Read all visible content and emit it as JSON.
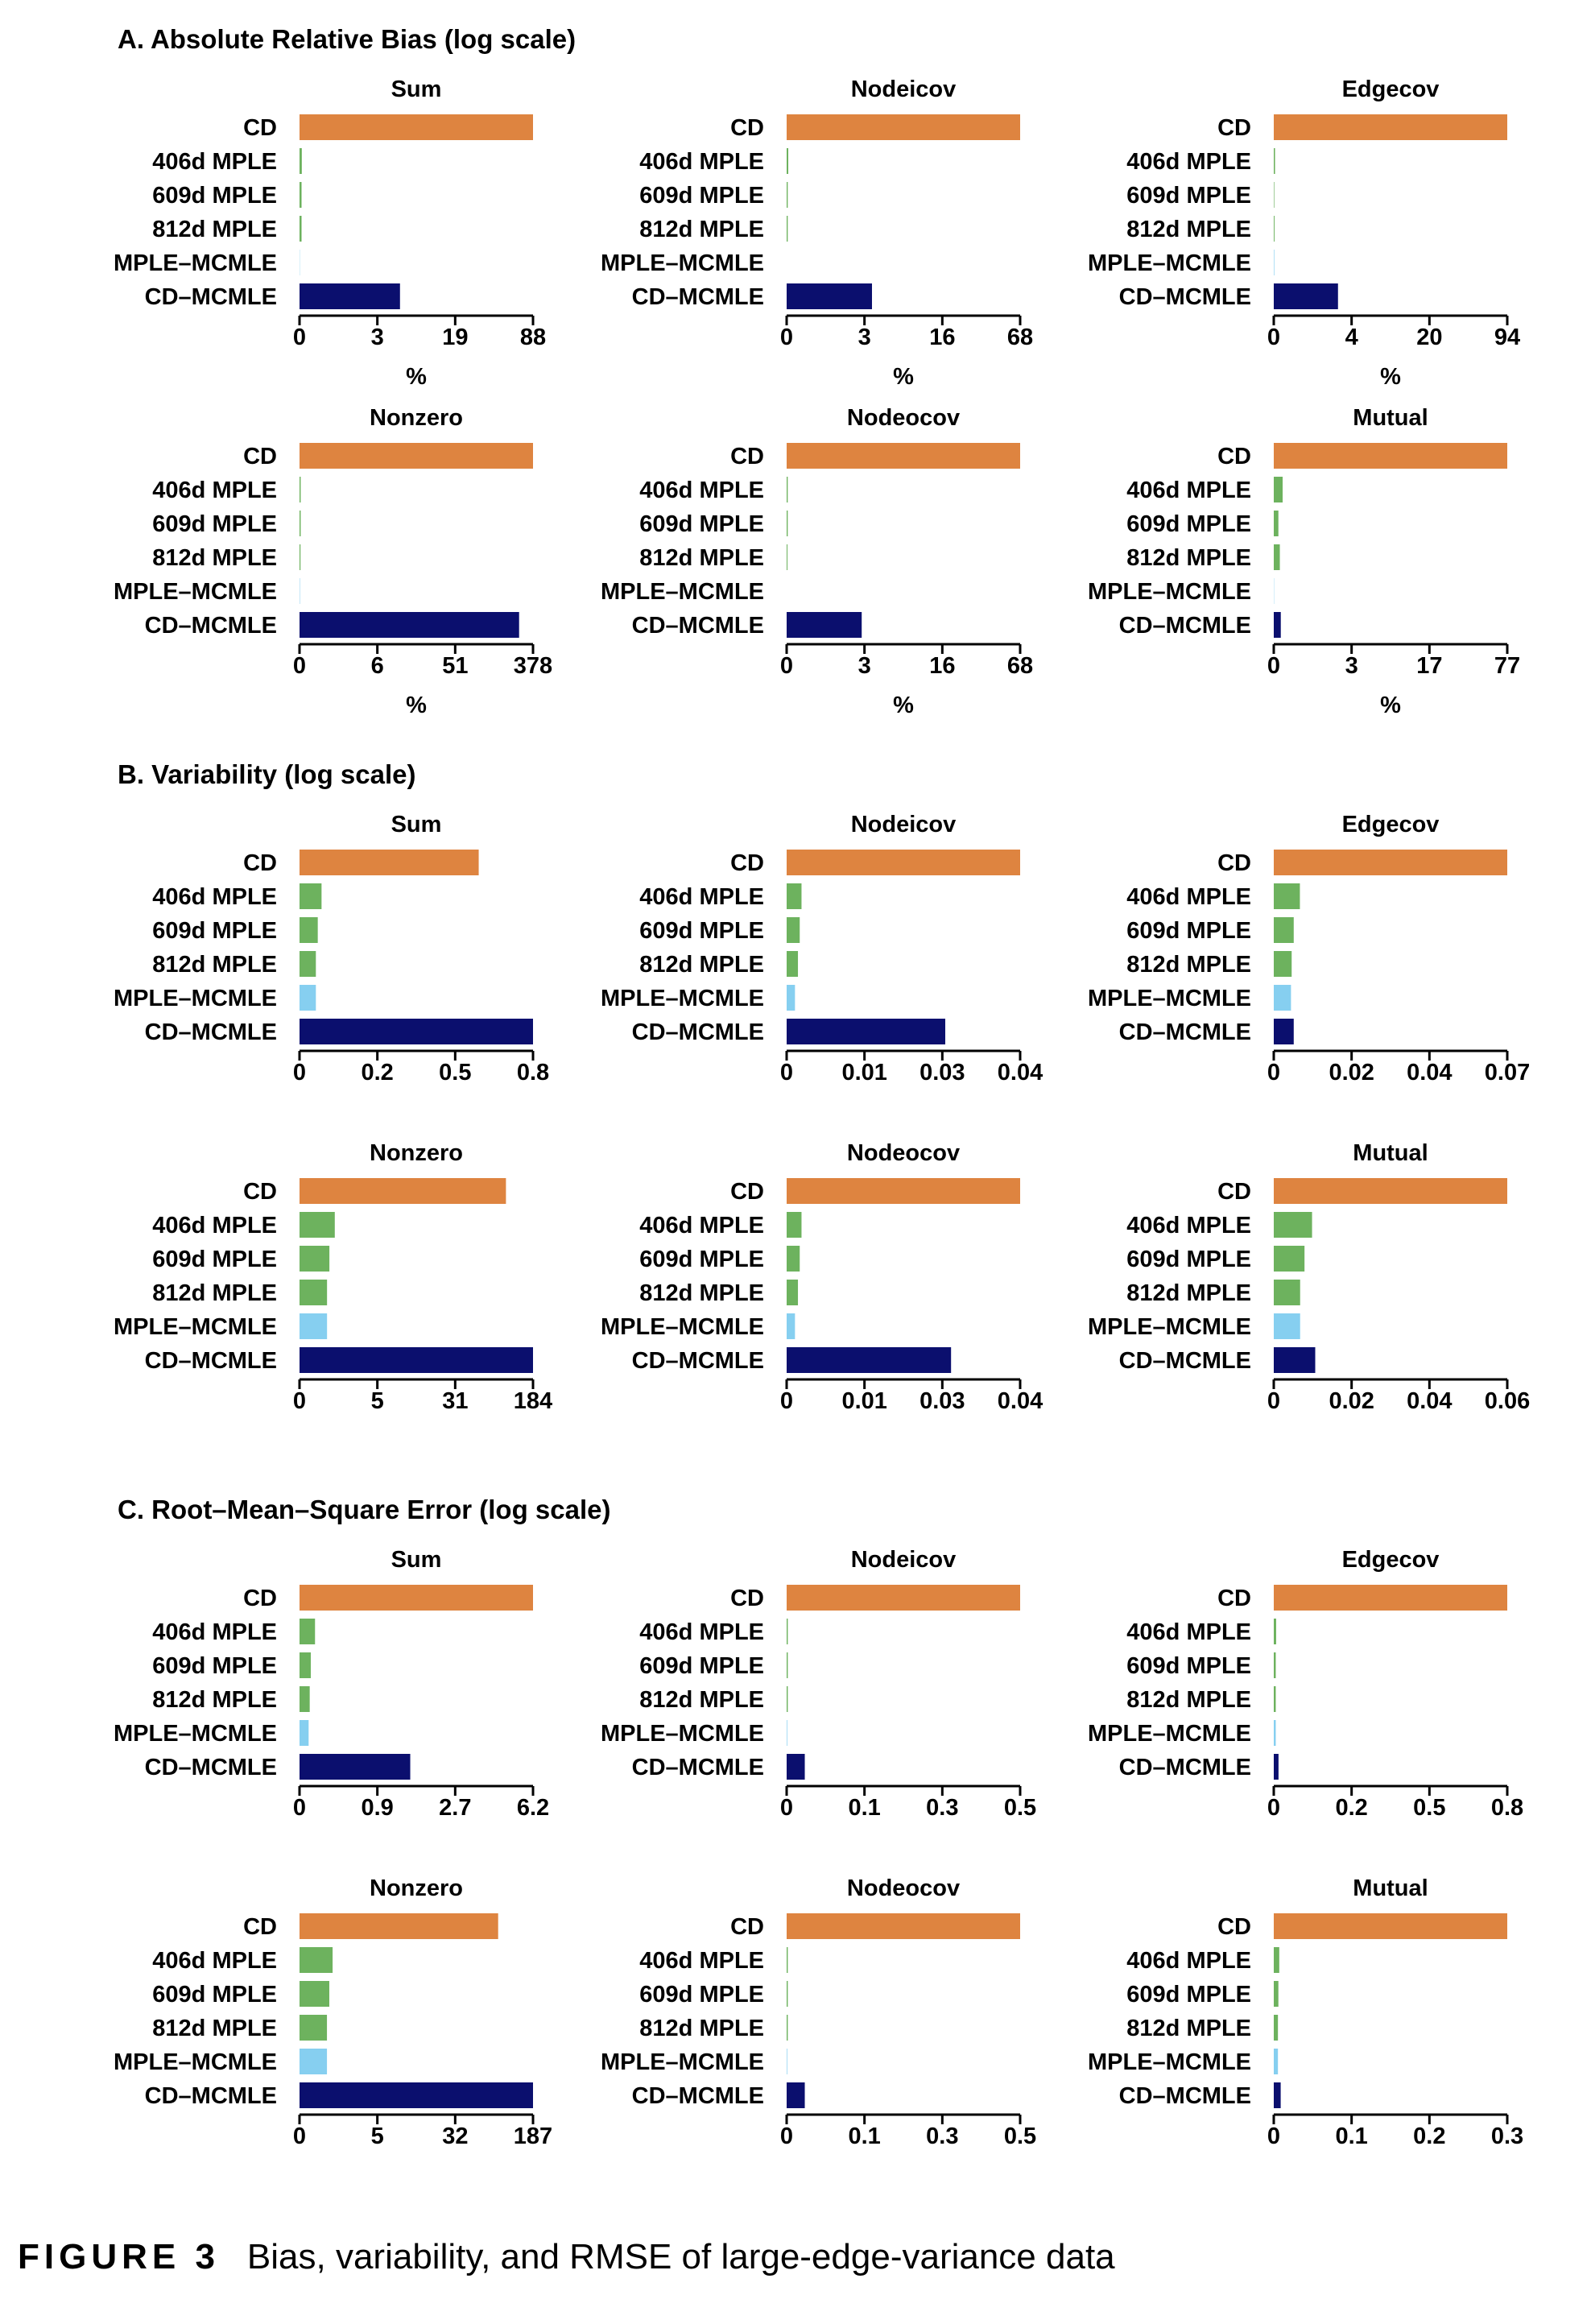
{
  "figure": {
    "label": "FIGURE 3",
    "caption": "Bias, variability, and RMSE of large-edge-variance data"
  },
  "colors": {
    "CD": "#DE8440",
    "406d MPLE": "#6DB25E",
    "609d MPLE": "#6DB25E",
    "812d MPLE": "#6DB25E",
    "MPLE–MCMLE": "#86CFF0",
    "CD–MCMLE": "#0B0F6E"
  },
  "categories": [
    "CD",
    "406d MPLE",
    "609d MPLE",
    "812d MPLE",
    "MPLE–MCMLE",
    "CD–MCMLE"
  ],
  "chart_data": [
    {
      "section": "A. Absolute Relative Bias (log scale)",
      "scale": "log",
      "xlabel": "%",
      "panels": [
        {
          "type": "bar",
          "orientation": "horizontal",
          "title": "Sum",
          "ticks": [
            "0",
            "3",
            "19",
            "88"
          ],
          "xlim": [
            0,
            88
          ],
          "values": [
            88,
            0.045,
            0.04,
            0.04,
            0.005,
            5.9
          ]
        },
        {
          "type": "bar",
          "orientation": "horizontal",
          "title": "Nodeicov",
          "ticks": [
            "0",
            "3",
            "16",
            "68"
          ],
          "xlim": [
            0,
            68
          ],
          "values": [
            68,
            0.03,
            0.02,
            0.02,
            0.0,
            3.7
          ]
        },
        {
          "type": "bar",
          "orientation": "horizontal",
          "title": "Edgecov",
          "ticks": [
            "0",
            "4",
            "20",
            "94"
          ],
          "xlim": [
            0,
            94
          ],
          "values": [
            94,
            0.025,
            0.01,
            0.015,
            0.01,
            2.5
          ]
        },
        {
          "type": "bar",
          "orientation": "horizontal",
          "title": "Nonzero",
          "ticks": [
            "0",
            "6",
            "51",
            "378"
          ],
          "xlim": [
            0,
            378
          ],
          "values": [
            378,
            0.03,
            0.03,
            0.025,
            0.01,
            265
          ]
        },
        {
          "type": "bar",
          "orientation": "horizontal",
          "title": "Nodeocov",
          "ticks": [
            "0",
            "3",
            "16",
            "68"
          ],
          "xlim": [
            0,
            68
          ],
          "values": [
            68,
            0.02,
            0.02,
            0.015,
            0.0,
            2.9
          ]
        },
        {
          "type": "bar",
          "orientation": "horizontal",
          "title": "Mutual",
          "ticks": [
            "0",
            "3",
            "17",
            "77"
          ],
          "xlim": [
            0,
            77
          ],
          "values": [
            77,
            0.18,
            0.09,
            0.12,
            0.005,
            0.14
          ]
        }
      ]
    },
    {
      "section": "B. Variability (log scale)",
      "scale": "log",
      "xlabel": "",
      "panels": [
        {
          "type": "bar",
          "orientation": "horizontal",
          "title": "Sum",
          "ticks": [
            "0",
            "0.2",
            "0.5",
            "0.8"
          ],
          "xlim": [
            0,
            0.8
          ],
          "values": [
            0.57,
            0.057,
            0.047,
            0.042,
            0.042,
            0.8
          ]
        },
        {
          "type": "bar",
          "orientation": "horizontal",
          "title": "Nodeicov",
          "ticks": [
            "0",
            "0.01",
            "0.03",
            "0.04"
          ],
          "xlim": [
            0,
            0.04
          ],
          "values": [
            0.04,
            0.0025,
            0.0022,
            0.0019,
            0.0014,
            0.027
          ]
        },
        {
          "type": "bar",
          "orientation": "horizontal",
          "title": "Edgecov",
          "ticks": [
            "0",
            "0.02",
            "0.04",
            "0.07"
          ],
          "xlim": [
            0,
            0.07
          ],
          "values": [
            0.07,
            0.0076,
            0.0058,
            0.0052,
            0.005,
            0.0058
          ]
        },
        {
          "type": "bar",
          "orientation": "horizontal",
          "title": "Nonzero",
          "ticks": [
            "0",
            "5",
            "31",
            "184"
          ],
          "xlim": [
            0,
            184
          ],
          "values": [
            100,
            1.2,
            0.95,
            0.85,
            0.85,
            184
          ]
        },
        {
          "type": "bar",
          "orientation": "horizontal",
          "title": "Nodeocov",
          "ticks": [
            "0",
            "0.01",
            "0.03",
            "0.04"
          ],
          "xlim": [
            0,
            0.04
          ],
          "values": [
            0.04,
            0.0025,
            0.0022,
            0.0019,
            0.0014,
            0.028
          ]
        },
        {
          "type": "bar",
          "orientation": "horizontal",
          "title": "Mutual",
          "ticks": [
            "0",
            "0.02",
            "0.04",
            "0.06"
          ],
          "xlim": [
            0,
            0.06
          ],
          "values": [
            0.06,
            0.0096,
            0.0077,
            0.0066,
            0.0066,
            0.0104
          ]
        }
      ]
    },
    {
      "section": "C. Root–Mean–Square Error (log scale)",
      "scale": "log",
      "xlabel": "",
      "panels": [
        {
          "type": "bar",
          "orientation": "horizontal",
          "title": "Sum",
          "ticks": [
            "0",
            "0.9",
            "2.7",
            "6.2"
          ],
          "xlim": [
            0,
            6.2
          ],
          "values": [
            6.2,
            0.14,
            0.1,
            0.09,
            0.08,
            1.55
          ]
        },
        {
          "type": "bar",
          "orientation": "horizontal",
          "title": "Nodeicov",
          "ticks": [
            "0",
            "0.1",
            "0.3",
            "0.5"
          ],
          "xlim": [
            0,
            0.5
          ],
          "values": [
            0.5,
            0.002,
            0.002,
            0.002,
            0.001,
            0.032
          ]
        },
        {
          "type": "bar",
          "orientation": "horizontal",
          "title": "Edgecov",
          "ticks": [
            "0",
            "0.2",
            "0.5",
            "0.8"
          ],
          "xlim": [
            0,
            0.8
          ],
          "values": [
            0.8,
            0.006,
            0.005,
            0.005,
            0.005,
            0.012
          ]
        },
        {
          "type": "bar",
          "orientation": "horizontal",
          "title": "Nonzero",
          "ticks": [
            "0",
            "5",
            "32",
            "187"
          ],
          "xlim": [
            0,
            187
          ],
          "values": [
            85,
            1.1,
            0.95,
            0.85,
            0.85,
            187
          ]
        },
        {
          "type": "bar",
          "orientation": "horizontal",
          "title": "Nodeocov",
          "ticks": [
            "0",
            "0.1",
            "0.3",
            "0.5"
          ],
          "xlim": [
            0,
            0.5
          ],
          "values": [
            0.5,
            0.002,
            0.002,
            0.002,
            0.001,
            0.032
          ]
        },
        {
          "type": "bar",
          "orientation": "horizontal",
          "title": "Mutual",
          "ticks": [
            "0",
            "0.1",
            "0.2",
            "0.3"
          ],
          "xlim": [
            0,
            0.3
          ],
          "values": [
            0.3,
            0.0062,
            0.0052,
            0.0047,
            0.0047,
            0.0078
          ]
        }
      ]
    }
  ]
}
